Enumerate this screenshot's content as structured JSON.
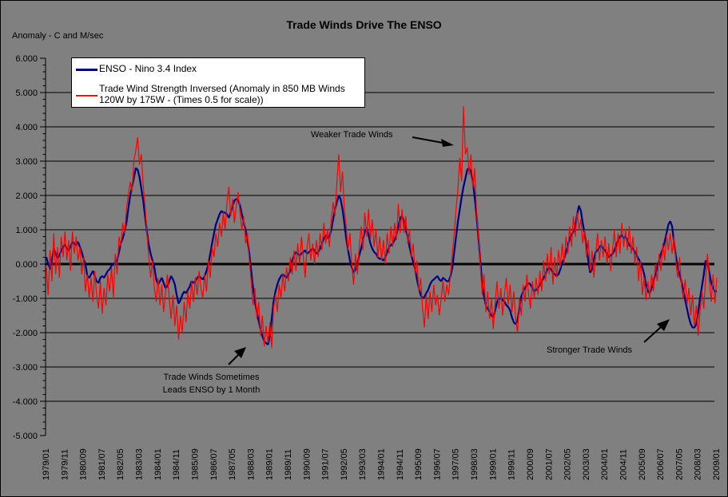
{
  "window": {
    "background": "#808080",
    "border": "#000000"
  },
  "title": "Trade Winds Drive The ENSO",
  "axis_caption": "Anomaly - C and M/sec",
  "legend": {
    "series1_label": "ENSO - Nino 3.4 Index",
    "series2_line1": "Trade Wind Strength Inversed (Anomaly in 850 MB Winds",
    "series2_line2": "120W by 175W - (Times 0.5 for scale))"
  },
  "annotations": {
    "weaker": "Weaker Trade Winds",
    "stronger": "Stronger Trade Winds",
    "leads_line1": "Trade Winds Sometimes",
    "leads_line2": "Leads ENSO by 1 Month"
  },
  "chart_data": {
    "type": "line",
    "title": "Trade Winds Drive The ENSO",
    "ylabel": "Anomaly - C and M/sec",
    "ylim": [
      -5,
      6
    ],
    "grid": "horizontal-major",
    "legend_position": "top-left-inside",
    "x_start": "1979/01",
    "x_end": "2009/01",
    "x_tick_interval_months": 10,
    "x_tick_labels": [
      "1979/01",
      "1979/11",
      "1980/09",
      "1981/07",
      "1982/05",
      "1983/03",
      "1984/01",
      "1984/11",
      "1985/09",
      "1986/07",
      "1987/05",
      "1988/03",
      "1989/01",
      "1989/11",
      "1990/09",
      "1991/07",
      "1992/05",
      "1993/03",
      "1994/01",
      "1994/11",
      "1995/09",
      "1996/07",
      "1997/05",
      "1998/03",
      "1999/01",
      "1999/11",
      "2000/09",
      "2001/07",
      "2002/05",
      "2003/03",
      "2004/01",
      "2004/11",
      "2005/09",
      "2006/07",
      "2007/05",
      "2008/03",
      "2009/01"
    ],
    "y_tick_labels": [
      "6.000",
      "5.000",
      "4.000",
      "3.000",
      "2.000",
      "1.000",
      "0.000",
      "-1.000",
      "-2.000",
      "-3.000",
      "-4.000",
      "-5.000"
    ],
    "series": [
      {
        "name": "ENSO - Nino 3.4 Index",
        "color": "#000080",
        "stroke_width": 2.2,
        "values": [
          0.2,
          0.0,
          -0.15,
          0.1,
          0.45,
          0.3,
          0.17,
          0.25,
          0.4,
          0.5,
          0.57,
          0.45,
          0.4,
          0.5,
          0.65,
          0.6,
          0.55,
          0.65,
          0.5,
          0.35,
          0.15,
          0.0,
          -0.35,
          -0.4,
          -0.3,
          -0.2,
          -0.35,
          -0.5,
          -0.55,
          -0.4,
          -0.35,
          -0.4,
          -0.3,
          -0.2,
          -0.15,
          -0.05,
          0.0,
          0.05,
          0.1,
          0.35,
          0.6,
          0.75,
          0.95,
          1.2,
          1.6,
          2.0,
          2.25,
          2.5,
          2.8,
          2.75,
          2.55,
          2.2,
          1.85,
          1.4,
          0.95,
          0.55,
          0.3,
          0.1,
          -0.1,
          -0.45,
          -0.6,
          -0.5,
          -0.4,
          -0.55,
          -0.7,
          -0.65,
          -0.5,
          -0.35,
          -0.45,
          -0.6,
          -0.9,
          -1.15,
          -1.05,
          -0.9,
          -0.8,
          -0.85,
          -0.75,
          -0.65,
          -0.5,
          -0.55,
          -0.5,
          -0.4,
          -0.35,
          -0.4,
          -0.45,
          -0.35,
          -0.2,
          0.0,
          0.3,
          0.6,
          0.9,
          1.15,
          1.3,
          1.45,
          1.55,
          1.5,
          1.5,
          1.45,
          1.35,
          1.5,
          1.7,
          1.85,
          1.9,
          1.85,
          1.7,
          1.45,
          1.2,
          1.0,
          0.7,
          0.3,
          -0.2,
          -0.7,
          -1.1,
          -1.4,
          -1.65,
          -1.9,
          -2.1,
          -2.25,
          -2.3,
          -2.35,
          -2.1,
          -1.6,
          -1.1,
          -0.8,
          -0.6,
          -0.45,
          -0.35,
          -0.3,
          -0.35,
          -0.4,
          -0.3,
          -0.2,
          0.1,
          0.25,
          0.35,
          0.3,
          0.25,
          0.3,
          0.35,
          0.4,
          0.3,
          0.35,
          0.4,
          0.45,
          0.4,
          0.3,
          0.35,
          0.45,
          0.6,
          0.75,
          0.85,
          0.75,
          0.8,
          1.0,
          1.3,
          1.6,
          1.8,
          2.0,
          1.9,
          1.6,
          1.2,
          0.75,
          0.4,
          0.1,
          -0.1,
          -0.25,
          -0.15,
          0.0,
          0.25,
          0.45,
          0.7,
          0.95,
          1.05,
          0.85,
          0.6,
          0.45,
          0.35,
          0.3,
          0.2,
          0.15,
          0.15,
          0.1,
          0.2,
          0.35,
          0.5,
          0.55,
          0.6,
          0.7,
          0.85,
          1.1,
          1.35,
          1.4,
          1.25,
          1.0,
          0.8,
          0.5,
          0.25,
          0.05,
          -0.15,
          -0.45,
          -0.7,
          -0.9,
          -1.0,
          -0.95,
          -0.85,
          -0.75,
          -0.6,
          -0.5,
          -0.45,
          -0.4,
          -0.35,
          -0.45,
          -0.5,
          -0.4,
          -0.45,
          -0.5,
          -0.5,
          -0.35,
          -0.1,
          0.35,
          0.8,
          1.25,
          1.6,
          1.95,
          2.25,
          2.5,
          2.75,
          2.8,
          2.7,
          2.4,
          1.95,
          1.4,
          0.75,
          0.1,
          -0.55,
          -0.95,
          -1.2,
          -1.3,
          -1.4,
          -1.5,
          -1.55,
          -1.35,
          -1.1,
          -1.0,
          -1.0,
          -1.05,
          -1.1,
          -1.2,
          -1.25,
          -1.35,
          -1.55,
          -1.7,
          -1.75,
          -1.65,
          -1.25,
          -0.95,
          -0.8,
          -0.7,
          -0.6,
          -0.55,
          -0.6,
          -0.7,
          -0.8,
          -0.75,
          -0.7,
          -0.6,
          -0.5,
          -0.4,
          -0.3,
          -0.15,
          -0.1,
          -0.15,
          -0.25,
          -0.3,
          -0.35,
          -0.3,
          -0.15,
          0.05,
          0.15,
          0.35,
          0.55,
          0.75,
          0.85,
          0.95,
          1.1,
          1.45,
          1.7,
          1.55,
          1.2,
          0.9,
          0.5,
          0.1,
          -0.25,
          -0.15,
          0.15,
          0.35,
          0.4,
          0.5,
          0.55,
          0.45,
          0.4,
          0.3,
          0.2,
          0.25,
          0.3,
          0.4,
          0.55,
          0.7,
          0.8,
          0.85,
          0.75,
          0.8,
          0.7,
          0.55,
          0.5,
          0.45,
          0.35,
          0.25,
          0.15,
          0.05,
          -0.1,
          -0.3,
          -0.6,
          -0.8,
          -0.85,
          -0.7,
          -0.5,
          -0.3,
          -0.1,
          0.1,
          0.3,
          0.45,
          0.65,
          0.9,
          1.15,
          1.25,
          1.1,
          0.65,
          0.25,
          -0.1,
          -0.3,
          -0.5,
          -0.75,
          -1.05,
          -1.3,
          -1.55,
          -1.75,
          -1.85,
          -1.85,
          -1.75,
          -1.4,
          -1.0,
          -0.65,
          -0.3,
          0.1,
          0.05,
          -0.25,
          -0.55,
          -0.7,
          -0.8,
          -0.8
        ]
      },
      {
        "name": "Trade Wind Strength Inversed (Anomaly in 850 MB Winds 120W by 175W - (Times 0.5 for scale))",
        "color": "#FF0000",
        "stroke_width": 1.2,
        "values": [
          -0.1,
          -0.9,
          0.4,
          -0.5,
          0.9,
          -0.3,
          0.5,
          -0.4,
          0.8,
          0.2,
          0.95,
          0.1,
          0.7,
          -0.2,
          0.95,
          0.3,
          0.8,
          0.1,
          0.5,
          -0.3,
          0.2,
          -0.8,
          -0.3,
          -1.0,
          -0.4,
          -1.1,
          -0.2,
          -0.9,
          -1.3,
          -0.5,
          -1.45,
          -0.7,
          -1.2,
          -0.3,
          -0.8,
          -0.1,
          -1.0,
          0.3,
          -0.3,
          0.8,
          0.5,
          1.2,
          0.9,
          1.6,
          2.0,
          2.4,
          2.1,
          3.0,
          3.3,
          3.7,
          2.9,
          3.2,
          2.3,
          1.7,
          0.9,
          0.2,
          -0.4,
          0.1,
          -0.7,
          -1.1,
          -0.4,
          -1.2,
          -0.6,
          -1.4,
          -0.8,
          -0.3,
          -1.0,
          -1.6,
          -0.9,
          -1.8,
          -1.2,
          -2.2,
          -1.5,
          -2.0,
          -1.1,
          -1.7,
          -0.8,
          -1.3,
          -0.5,
          -1.1,
          -0.4,
          -0.9,
          -0.2,
          -0.7,
          -1.0,
          -0.3,
          -0.8,
          0.1,
          -0.4,
          0.5,
          0.2,
          0.9,
          0.5,
          1.2,
          0.8,
          1.5,
          1.0,
          1.8,
          2.25,
          1.4,
          1.9,
          1.2,
          1.7,
          2.1,
          1.5,
          1.0,
          1.4,
          0.6,
          0.9,
          0.1,
          -0.5,
          -1.2,
          -0.7,
          -1.6,
          -1.1,
          -2.1,
          -1.5,
          -2.4,
          -1.8,
          -2.3,
          -1.7,
          -2.45,
          -1.3,
          -0.9,
          -1.4,
          -0.6,
          -1.0,
          -0.3,
          -0.8,
          -0.1,
          -0.5,
          0.2,
          -0.3,
          0.4,
          -0.2,
          0.6,
          0.0,
          0.8,
          0.2,
          -0.4,
          0.5,
          0.9,
          0.1,
          0.6,
          0.0,
          0.7,
          0.2,
          0.9,
          0.4,
          1.2,
          0.6,
          1.0,
          0.5,
          1.3,
          1.8,
          1.4,
          2.4,
          3.2,
          2.1,
          2.7,
          1.6,
          1.1,
          0.4,
          0.9,
          0.0,
          -0.6,
          0.3,
          -0.3,
          0.5,
          1.1,
          0.4,
          1.5,
          0.8,
          1.6,
          0.7,
          1.3,
          0.5,
          1.0,
          0.2,
          0.8,
          0.1,
          0.7,
          0.0,
          0.9,
          0.3,
          1.1,
          0.5,
          1.2,
          0.7,
          1.75,
          0.9,
          1.6,
          0.9,
          1.4,
          0.6,
          1.0,
          0.2,
          0.6,
          -0.3,
          0.1,
          -0.8,
          -0.4,
          -1.3,
          -1.85,
          -0.9,
          -1.6,
          -0.8,
          -1.4,
          -0.6,
          -1.2,
          -0.9,
          -1.5,
          -1.0,
          -0.5,
          -1.1,
          -0.6,
          -0.9,
          -0.3,
          0.3,
          0.9,
          1.6,
          2.2,
          3.1,
          2.4,
          4.6,
          3.2,
          3.4,
          2.6,
          3.2,
          2.2,
          2.8,
          1.5,
          0.8,
          0.0,
          -0.9,
          -0.3,
          -1.4,
          -0.8,
          -1.6,
          -1.0,
          -1.9,
          -1.1,
          -0.5,
          -1.3,
          -0.7,
          -1.5,
          -0.9,
          -0.4,
          -1.2,
          -0.6,
          -1.4,
          -0.8,
          -1.6,
          -2.0,
          -1.0,
          -1.5,
          -0.6,
          -1.1,
          -0.3,
          -0.9,
          -1.3,
          -0.5,
          -1.0,
          -0.4,
          -0.9,
          -0.2,
          -0.8,
          0.1,
          -0.5,
          0.3,
          -0.3,
          0.5,
          -0.6,
          0.2,
          -0.4,
          0.4,
          -0.1,
          0.6,
          0.0,
          0.8,
          0.3,
          1.1,
          0.5,
          1.4,
          0.8,
          1.5,
          1.0,
          1.3,
          0.6,
          1.0,
          0.2,
          0.7,
          -0.2,
          0.4,
          -0.4,
          0.3,
          0.9,
          0.1,
          0.7,
          0.2,
          0.8,
          0.0,
          0.6,
          -0.2,
          0.4,
          1.0,
          0.2,
          0.9,
          0.3,
          1.2,
          0.5,
          1.0,
          0.4,
          1.1,
          0.3,
          0.8,
          0.0,
          0.5,
          -0.5,
          0.1,
          -0.9,
          -0.4,
          -1.05,
          -0.5,
          -1.0,
          -0.3,
          -0.8,
          0.0,
          -0.5,
          0.3,
          -0.2,
          0.6,
          0.1,
          0.85,
          0.4,
          0.9,
          0.3,
          0.8,
          0.1,
          -0.4,
          0.2,
          -0.6,
          -1.0,
          -0.45,
          -1.2,
          -0.7,
          -1.5,
          -0.9,
          -1.8,
          -1.2,
          -2.1,
          -1.4,
          -0.8,
          -1.3,
          -0.4,
          0.3,
          -0.5,
          -1.1,
          -0.3,
          -1.15,
          -0.4
        ]
      }
    ]
  }
}
